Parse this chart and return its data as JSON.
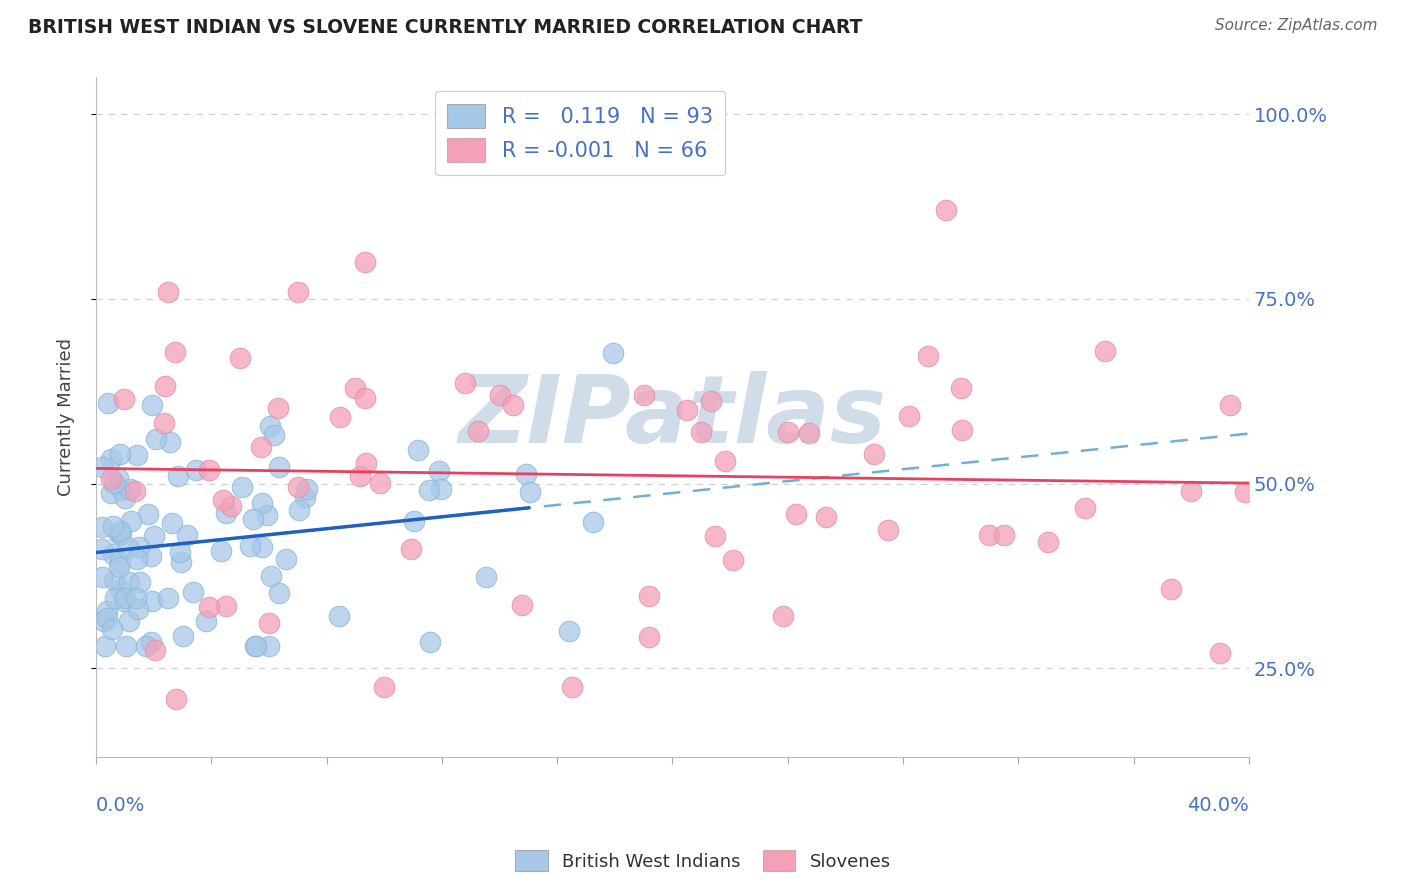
{
  "title": "BRITISH WEST INDIAN VS SLOVENE CURRENTLY MARRIED CORRELATION CHART",
  "source": "Source: ZipAtlas.com",
  "ylabel": "Currently Married",
  "ytick_labels": [
    "25.0%",
    "50.0%",
    "75.0%",
    "100.0%"
  ],
  "ytick_values": [
    0.25,
    0.5,
    0.75,
    1.0
  ],
  "xlim": [
    0.0,
    0.4
  ],
  "ylim": [
    0.13,
    1.05
  ],
  "r1": 0.119,
  "n1": 93,
  "r2": -0.001,
  "n2": 66,
  "color_bwi": "#A8C8E8",
  "color_slovene": "#F4A0B8",
  "trend_bwi_solid_color": "#2060C0",
  "trend_bwi_dash_color": "#70B0D8",
  "trend_slovene_color": "#E84060",
  "watermark_color": "#D0DCE8",
  "background_color": "#FFFFFF",
  "grid_color": "#C8D0D8",
  "title_color": "#222222",
  "source_color": "#666666",
  "tick_label_color": "#4472C4",
  "legend_text_color": "#4472C4",
  "legend_label_color": "#333333"
}
